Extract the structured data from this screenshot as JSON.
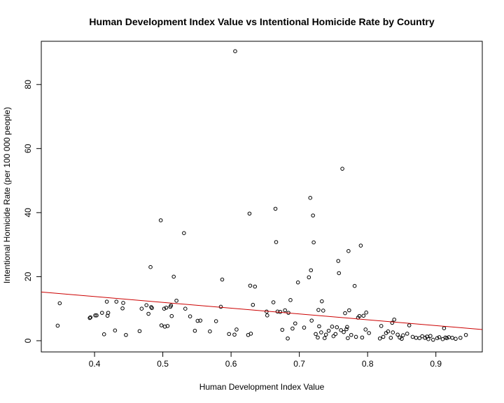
{
  "chart_data": {
    "type": "scatter",
    "title": "Human Development Index Value vs Intentional Homicide Rate by Country",
    "xlabel": "Human Development Index Value",
    "ylabel": "Intentional Homicide Rate (per 100 000 people)",
    "xlim": [
      0.322,
      0.968
    ],
    "ylim": [
      -3.5,
      93.5
    ],
    "x_ticks": [
      0.4,
      0.5,
      0.6,
      0.7,
      0.8,
      0.9
    ],
    "x_tick_labels": [
      "0.4",
      "0.5",
      "0.6",
      "0.7",
      "0.8",
      "0.9"
    ],
    "y_ticks": [
      0,
      20,
      40,
      60,
      80
    ],
    "y_tick_labels": [
      "0",
      "20",
      "40",
      "60",
      "80"
    ],
    "grid": false,
    "box": true,
    "trend_line": {
      "x": [
        0.322,
        0.968
      ],
      "y": [
        15.2,
        3.5
      ],
      "color": "#cc0000"
    },
    "point_color": "#000000",
    "points": [
      [
        0.346,
        4.7
      ],
      [
        0.349,
        11.7
      ],
      [
        0.393,
        7.1
      ],
      [
        0.394,
        7.3
      ],
      [
        0.401,
        7.9
      ],
      [
        0.403,
        7.9
      ],
      [
        0.411,
        8.7
      ],
      [
        0.414,
        2.0
      ],
      [
        0.418,
        12.2
      ],
      [
        0.419,
        7.8
      ],
      [
        0.42,
        8.7
      ],
      [
        0.43,
        3.2
      ],
      [
        0.432,
        12.2
      ],
      [
        0.441,
        10.1
      ],
      [
        0.442,
        11.8
      ],
      [
        0.446,
        1.8
      ],
      [
        0.466,
        3.0
      ],
      [
        0.469,
        10.0
      ],
      [
        0.476,
        11.1
      ],
      [
        0.479,
        8.4
      ],
      [
        0.482,
        23.0
      ],
      [
        0.483,
        10.5
      ],
      [
        0.484,
        10.2
      ],
      [
        0.497,
        37.6
      ],
      [
        0.498,
        4.8
      ],
      [
        0.502,
        10.0
      ],
      [
        0.503,
        4.4
      ],
      [
        0.505,
        10.3
      ],
      [
        0.507,
        4.6
      ],
      [
        0.511,
        10.6
      ],
      [
        0.512,
        11.0
      ],
      [
        0.513,
        7.7
      ],
      [
        0.516,
        20.0
      ],
      [
        0.52,
        12.5
      ],
      [
        0.531,
        33.6
      ],
      [
        0.533,
        10.0
      ],
      [
        0.54,
        7.6
      ],
      [
        0.547,
        3.1
      ],
      [
        0.551,
        6.2
      ],
      [
        0.555,
        6.3
      ],
      [
        0.569,
        2.9
      ],
      [
        0.578,
        6.1
      ],
      [
        0.585,
        10.6
      ],
      [
        0.587,
        19.1
      ],
      [
        0.597,
        2.1
      ],
      [
        0.605,
        1.9
      ],
      [
        0.606,
        90.4
      ],
      [
        0.608,
        3.5
      ],
      [
        0.625,
        1.8
      ],
      [
        0.627,
        39.7
      ],
      [
        0.628,
        17.2
      ],
      [
        0.629,
        2.2
      ],
      [
        0.632,
        11.2
      ],
      [
        0.635,
        16.9
      ],
      [
        0.652,
        9.1
      ],
      [
        0.653,
        7.9
      ],
      [
        0.662,
        12.0
      ],
      [
        0.665,
        41.2
      ],
      [
        0.666,
        30.8
      ],
      [
        0.668,
        9.1
      ],
      [
        0.672,
        9.0
      ],
      [
        0.675,
        3.4
      ],
      [
        0.679,
        9.5
      ],
      [
        0.683,
        0.7
      ],
      [
        0.684,
        8.7
      ],
      [
        0.687,
        12.7
      ],
      [
        0.69,
        3.8
      ],
      [
        0.694,
        5.4
      ],
      [
        0.698,
        18.2
      ],
      [
        0.707,
        4.1
      ],
      [
        0.714,
        19.8
      ],
      [
        0.716,
        44.6
      ],
      [
        0.717,
        22.0
      ],
      [
        0.718,
        6.3
      ],
      [
        0.72,
        39.1
      ],
      [
        0.721,
        30.7
      ],
      [
        0.724,
        2.1
      ],
      [
        0.727,
        1.0
      ],
      [
        0.728,
        9.6
      ],
      [
        0.729,
        4.5
      ],
      [
        0.732,
        2.6
      ],
      [
        0.733,
        12.3
      ],
      [
        0.735,
        9.4
      ],
      [
        0.737,
        0.8
      ],
      [
        0.739,
        1.9
      ],
      [
        0.743,
        3.1
      ],
      [
        0.748,
        4.4
      ],
      [
        0.75,
        1.4
      ],
      [
        0.753,
        2.1
      ],
      [
        0.755,
        4.2
      ],
      [
        0.757,
        24.9
      ],
      [
        0.758,
        21.1
      ],
      [
        0.761,
        3.3
      ],
      [
        0.763,
        53.7
      ],
      [
        0.765,
        2.7
      ],
      [
        0.767,
        8.6
      ],
      [
        0.769,
        3.6
      ],
      [
        0.77,
        4.3
      ],
      [
        0.771,
        0.8
      ],
      [
        0.772,
        28.0
      ],
      [
        0.773,
        9.5
      ],
      [
        0.776,
        1.8
      ],
      [
        0.781,
        17.1
      ],
      [
        0.783,
        1.2
      ],
      [
        0.786,
        7.2
      ],
      [
        0.788,
        7.7
      ],
      [
        0.79,
        29.7
      ],
      [
        0.792,
        1.0
      ],
      [
        0.794,
        7.8
      ],
      [
        0.797,
        3.5
      ],
      [
        0.798,
        8.8
      ],
      [
        0.802,
        2.4
      ],
      [
        0.818,
        0.7
      ],
      [
        0.82,
        4.6
      ],
      [
        0.823,
        1.2
      ],
      [
        0.827,
        2.4
      ],
      [
        0.83,
        2.9
      ],
      [
        0.834,
        0.9
      ],
      [
        0.836,
        5.6
      ],
      [
        0.837,
        2.6
      ],
      [
        0.839,
        6.6
      ],
      [
        0.844,
        1.9
      ],
      [
        0.847,
        1.0
      ],
      [
        0.85,
        0.6
      ],
      [
        0.852,
        1.7
      ],
      [
        0.858,
        2.2
      ],
      [
        0.861,
        4.8
      ],
      [
        0.866,
        1.2
      ],
      [
        0.871,
        0.9
      ],
      [
        0.876,
        0.8
      ],
      [
        0.88,
        1.4
      ],
      [
        0.884,
        0.9
      ],
      [
        0.887,
        1.3
      ],
      [
        0.889,
        0.5
      ],
      [
        0.892,
        1.5
      ],
      [
        0.896,
        0.3
      ],
      [
        0.902,
        0.8
      ],
      [
        0.905,
        1.1
      ],
      [
        0.91,
        0.5
      ],
      [
        0.912,
        3.9
      ],
      [
        0.914,
        1.0
      ],
      [
        0.916,
        0.8
      ],
      [
        0.919,
        1.1
      ],
      [
        0.924,
        0.9
      ],
      [
        0.929,
        0.6
      ],
      [
        0.936,
        0.9
      ],
      [
        0.944,
        1.8
      ]
    ]
  }
}
